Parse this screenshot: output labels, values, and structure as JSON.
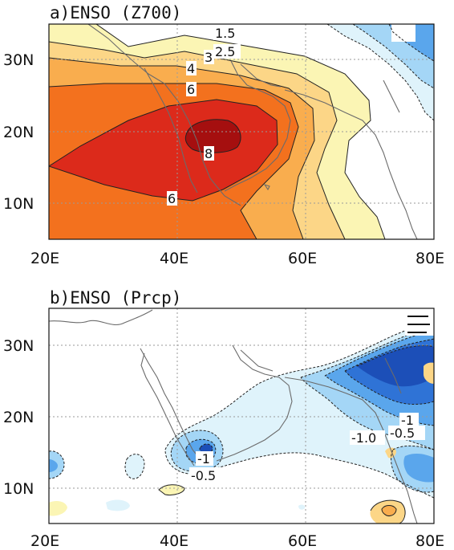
{
  "panels": [
    {
      "title": "a)ENSO (Z700)",
      "contour_labels": [
        "1.5",
        "2.5",
        "3",
        "4",
        "6",
        "8",
        "6"
      ]
    },
    {
      "title": "b)ENSO (Prcp)",
      "contour_labels": [
        "-1",
        "-0.5",
        "-1",
        "-1.0",
        "-0.5"
      ]
    }
  ],
  "x_ticks": [
    "20E",
    "40E",
    "60E",
    "80E"
  ],
  "y_ticks": [
    "30N",
    "20N",
    "10N"
  ],
  "colors": {
    "pos_1": "#fbf5b4",
    "pos_2": "#fcd687",
    "pos_3": "#f9ad4e",
    "pos_4": "#f3711e",
    "pos_5": "#dc2a1b",
    "pos_6": "#a50f0f",
    "neg_1": "#dff3fb",
    "neg_2": "#a4d6f6",
    "neg_3": "#5aa6ec",
    "neg_4": "#2f73d6",
    "neg_5": "#1c4fb8"
  }
}
